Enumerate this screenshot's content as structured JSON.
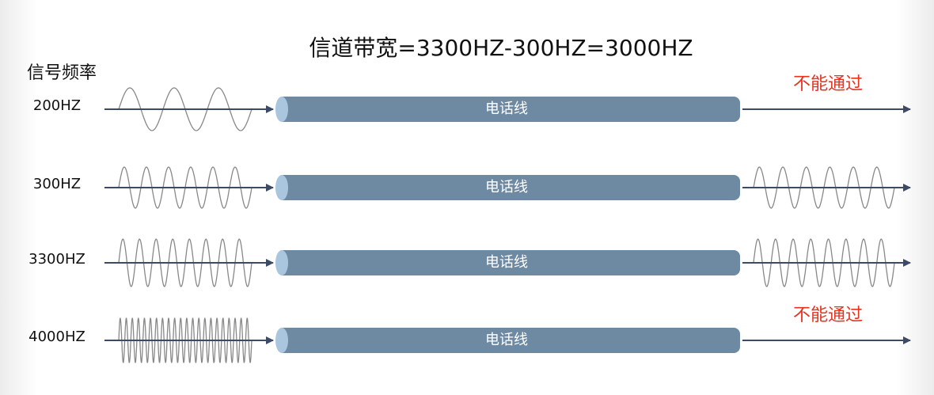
{
  "title": "信道带宽=3300HZ-300HZ=3000HZ",
  "axis_label": "信号频率",
  "rows": [
    {
      "frequency": "200HZ",
      "channel": "电话线",
      "result": "不能通过"
    },
    {
      "frequency": "300HZ",
      "channel": "电话线"
    },
    {
      "frequency": "3300HZ",
      "channel": "电话线"
    },
    {
      "frequency": "4000HZ",
      "channel": "电话线",
      "result": "不能通过"
    }
  ]
}
